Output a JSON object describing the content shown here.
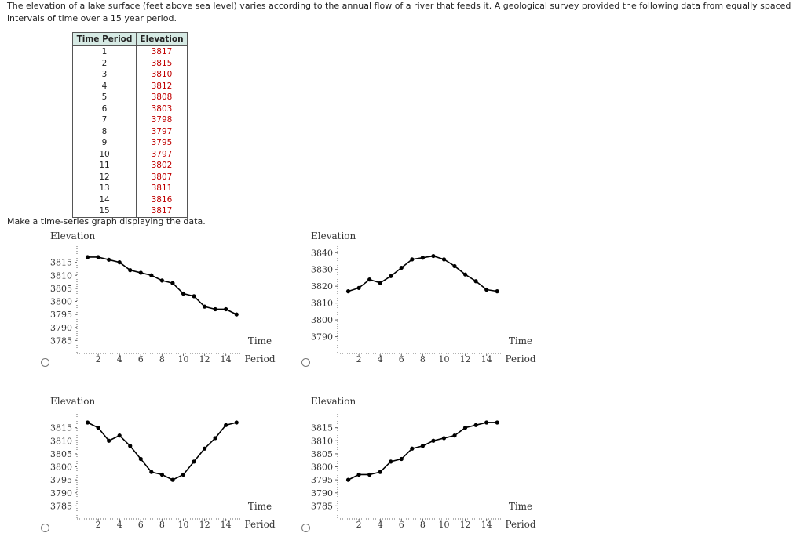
{
  "question": {
    "intro": "The elevation of a lake surface (feet above sea level) varies according to the annual flow of a river that feeds it. A geological survey provided the following data from equally spaced intervals of time over a 15 year period.",
    "prompt": "Make a time-series graph displaying the data."
  },
  "table": {
    "headers": [
      "Time Period",
      "Elevation"
    ],
    "rows": [
      [
        "1",
        "3817"
      ],
      [
        "2",
        "3815"
      ],
      [
        "3",
        "3810"
      ],
      [
        "4",
        "3812"
      ],
      [
        "5",
        "3808"
      ],
      [
        "6",
        "3803"
      ],
      [
        "7",
        "3798"
      ],
      [
        "8",
        "3797"
      ],
      [
        "9",
        "3795"
      ],
      [
        "10",
        "3797"
      ],
      [
        "11",
        "3802"
      ],
      [
        "12",
        "3807"
      ],
      [
        "13",
        "3811"
      ],
      [
        "14",
        "3816"
      ],
      [
        "15",
        "3817"
      ]
    ]
  },
  "chart_data": [
    {
      "type": "line",
      "ylabel": "Elevation",
      "xlabel_line1": "Time",
      "xlabel_line2": "Period",
      "x": [
        1,
        2,
        3,
        4,
        5,
        6,
        7,
        8,
        9,
        10,
        11,
        12,
        13,
        14,
        15
      ],
      "y": [
        3817,
        3817,
        3816,
        3815,
        3812,
        3811,
        3810,
        3808,
        3807,
        3803,
        3802,
        3798,
        3797,
        3797,
        3795
      ],
      "xticks": [
        2,
        4,
        6,
        8,
        10,
        12,
        14
      ],
      "yticks": [
        3785,
        3790,
        3795,
        3800,
        3805,
        3810,
        3815
      ],
      "xlim": [
        0,
        15.5
      ],
      "ylim": [
        3780,
        3820
      ],
      "color": "#000000"
    },
    {
      "type": "line",
      "ylabel": "Elevation",
      "xlabel_line1": "Time",
      "xlabel_line2": "Period",
      "x": [
        1,
        2,
        3,
        4,
        5,
        6,
        7,
        8,
        9,
        10,
        11,
        12,
        13,
        14,
        15
      ],
      "y": [
        3817,
        3819,
        3824,
        3822,
        3826,
        3831,
        3836,
        3837,
        3838,
        3836,
        3832,
        3827,
        3823,
        3818,
        3817
      ],
      "xticks": [
        2,
        4,
        6,
        8,
        10,
        12,
        14
      ],
      "yticks": [
        3790,
        3800,
        3810,
        3820,
        3830,
        3840
      ],
      "xlim": [
        0,
        15.5
      ],
      "ylim": [
        3780,
        3842
      ],
      "color": "#000000"
    },
    {
      "type": "line",
      "ylabel": "Elevation",
      "xlabel_line1": "Time",
      "xlabel_line2": "Period",
      "x": [
        1,
        2,
        3,
        4,
        5,
        6,
        7,
        8,
        9,
        10,
        11,
        12,
        13,
        14,
        15
      ],
      "y": [
        3817,
        3815,
        3810,
        3812,
        3808,
        3803,
        3798,
        3797,
        3795,
        3797,
        3802,
        3807,
        3811,
        3816,
        3817
      ],
      "xticks": [
        2,
        4,
        6,
        8,
        10,
        12,
        14
      ],
      "yticks": [
        3785,
        3790,
        3795,
        3800,
        3805,
        3810,
        3815
      ],
      "xlim": [
        0,
        15.5
      ],
      "ylim": [
        3780,
        3820
      ],
      "color": "#000000"
    },
    {
      "type": "line",
      "ylabel": "Elevation",
      "xlabel_line1": "Time",
      "xlabel_line2": "Period",
      "x": [
        1,
        2,
        3,
        4,
        5,
        6,
        7,
        8,
        9,
        10,
        11,
        12,
        13,
        14,
        15
      ],
      "y": [
        3795,
        3797,
        3797,
        3798,
        3802,
        3803,
        3807,
        3808,
        3810,
        3811,
        3812,
        3815,
        3816,
        3817,
        3817
      ],
      "xticks": [
        2,
        4,
        6,
        8,
        10,
        12,
        14
      ],
      "yticks": [
        3785,
        3790,
        3795,
        3800,
        3805,
        3810,
        3815
      ],
      "xlim": [
        0,
        15.5
      ],
      "ylim": [
        3780,
        3820
      ],
      "color": "#000000"
    }
  ]
}
